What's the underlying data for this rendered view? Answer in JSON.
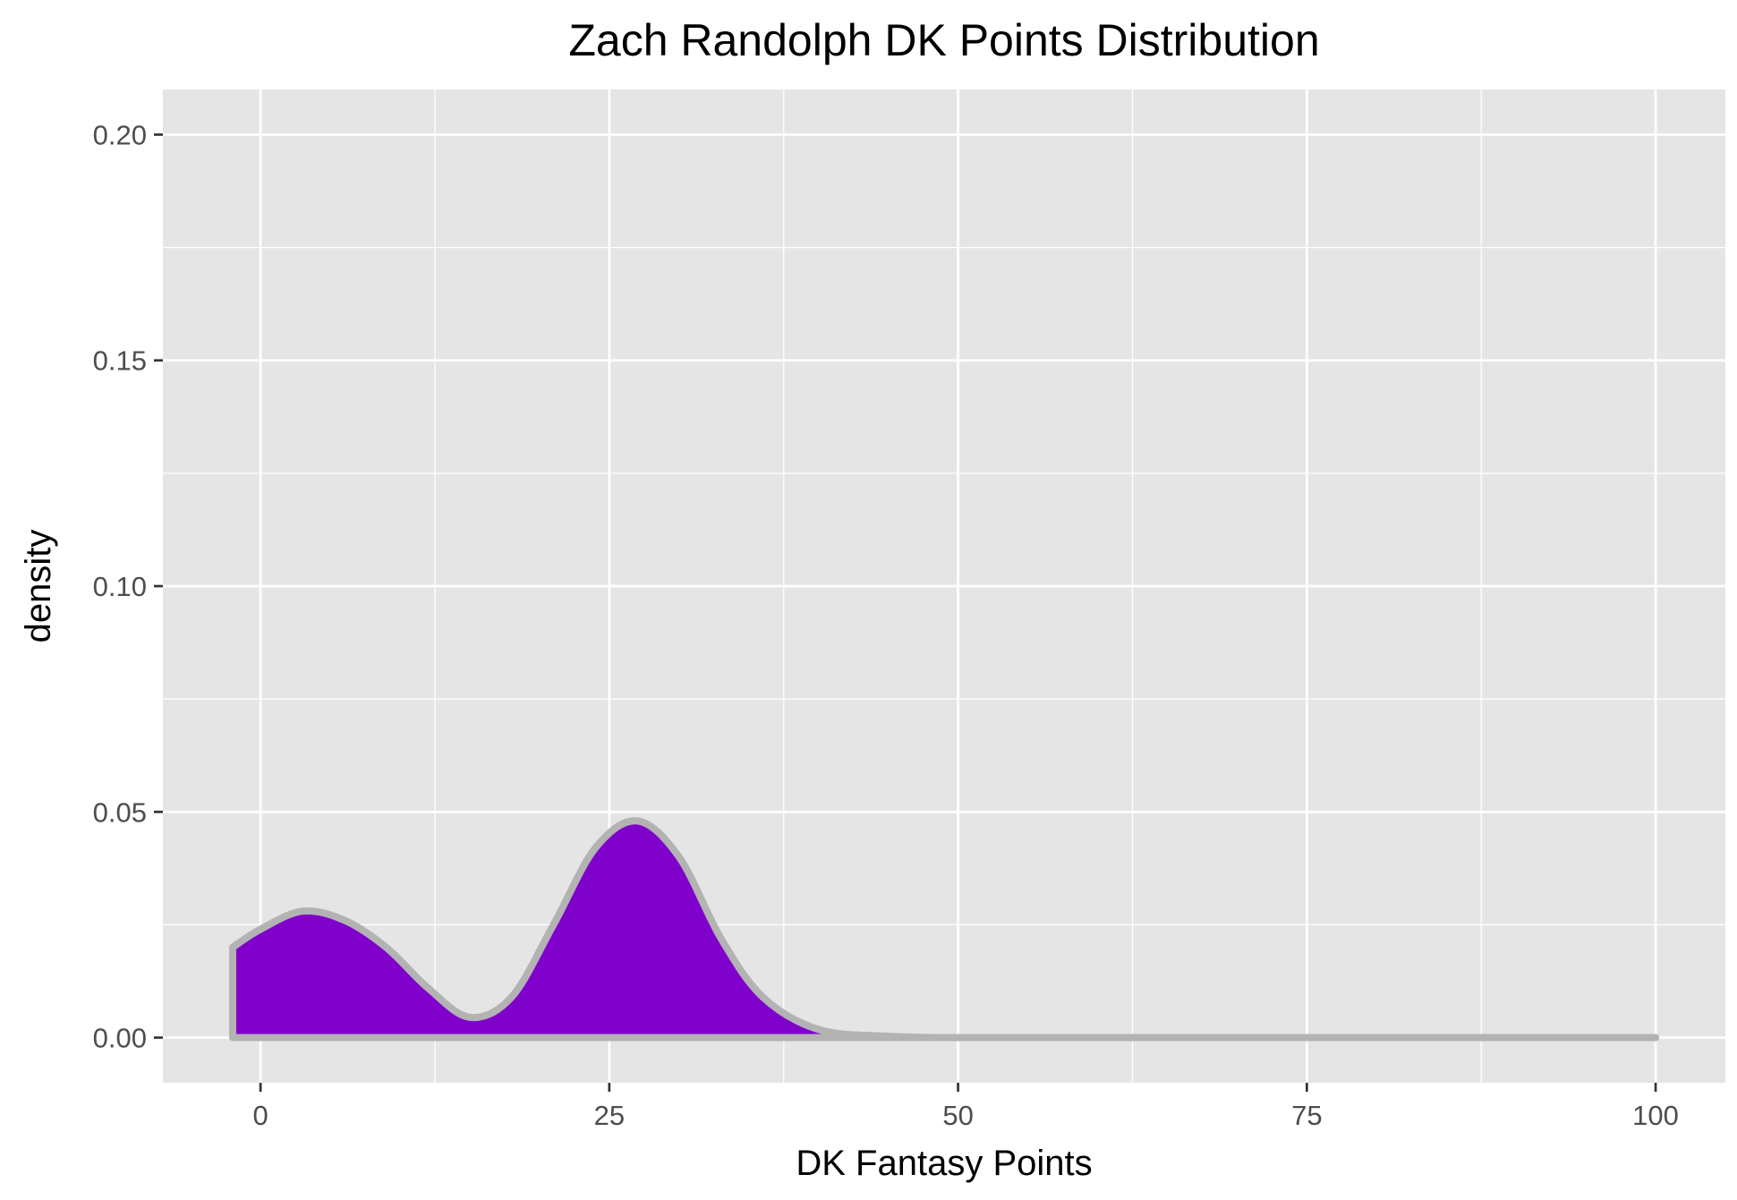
{
  "chart_data": {
    "type": "area",
    "title": "Zach Randolph DK Points Distribution",
    "xlabel": "DK Fantasy Points",
    "ylabel": "density",
    "xlim": [
      -7,
      105
    ],
    "ylim": [
      -0.01,
      0.21
    ],
    "x_ticks": [
      0,
      25,
      50,
      75,
      100
    ],
    "x_tick_labels": [
      "0",
      "25",
      "50",
      "75",
      "100"
    ],
    "y_ticks": [
      0.0,
      0.05,
      0.1,
      0.15,
      0.2
    ],
    "y_tick_labels": [
      "0.00",
      "0.05",
      "0.10",
      "0.15",
      "0.20"
    ],
    "grid": true,
    "legend": "none",
    "colors": {
      "panel_background": "#e5e5e5",
      "grid_line": "#ffffff",
      "fill": "#8000cc",
      "outline": "#b3b3b3"
    },
    "series": [
      {
        "x": [
          -2,
          0,
          3,
          6,
          9,
          12,
          15,
          18,
          21,
          24,
          27,
          30,
          33,
          36,
          40,
          45,
          50,
          60,
          80,
          100
        ],
        "y": [
          0.02,
          0.024,
          0.028,
          0.026,
          0.02,
          0.011,
          0.0045,
          0.009,
          0.025,
          0.042,
          0.048,
          0.04,
          0.022,
          0.009,
          0.0018,
          0.0003,
          0.0,
          0.0,
          0.0,
          0.0
        ]
      }
    ]
  }
}
